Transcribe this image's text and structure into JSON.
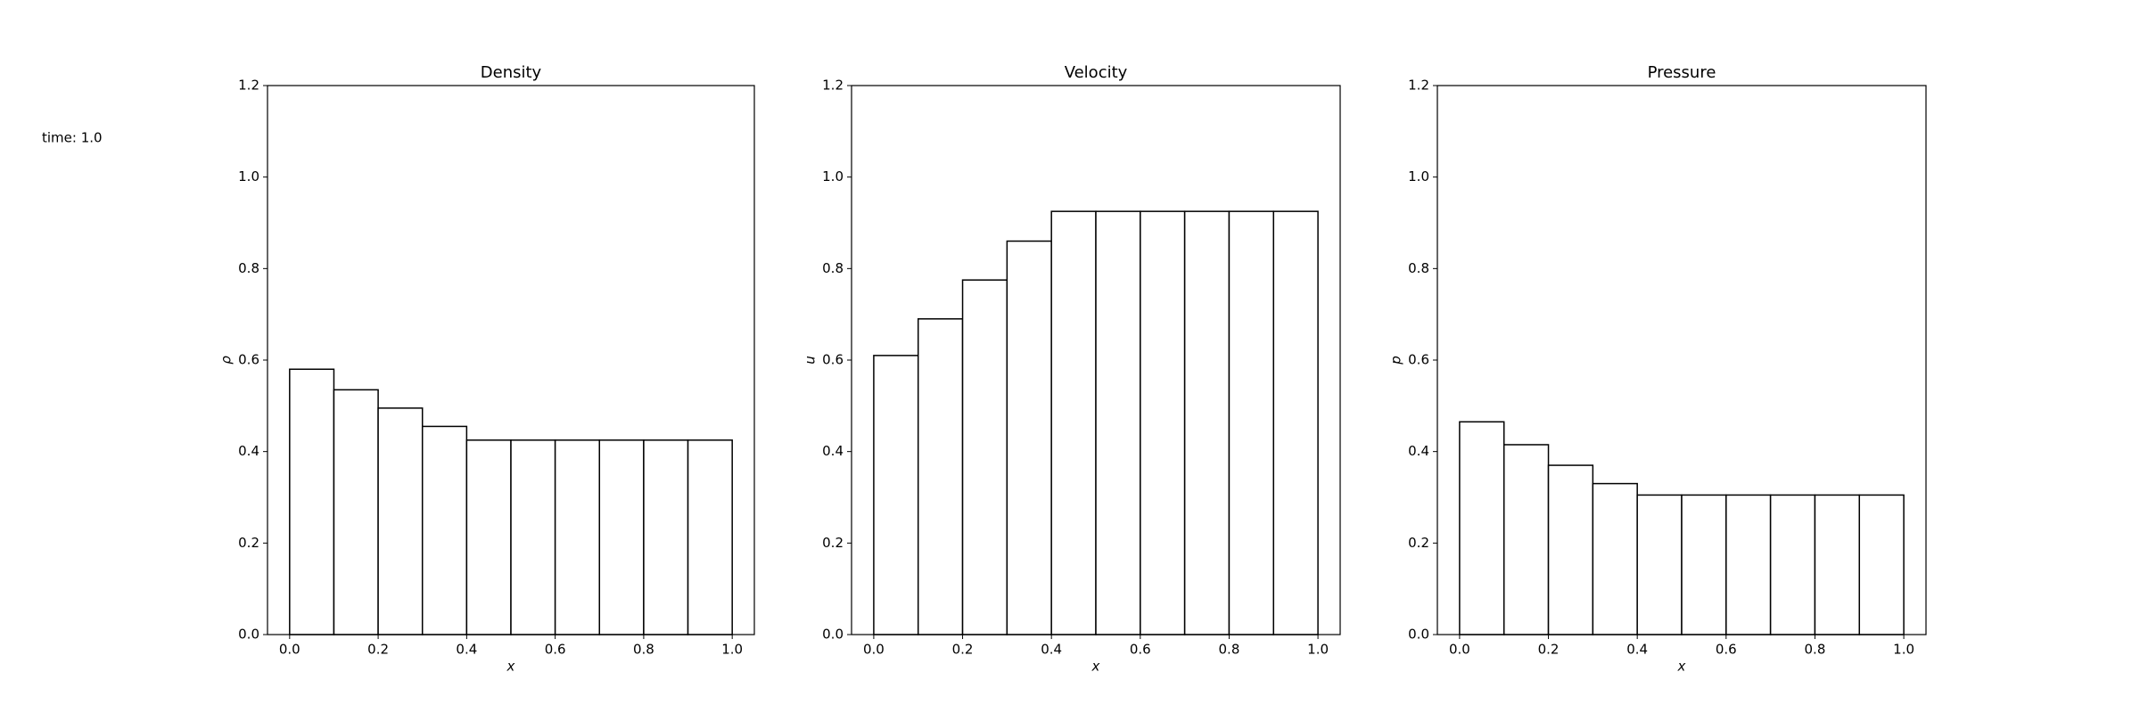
{
  "time_label": "time: 1.0",
  "chart_data": [
    {
      "type": "histogram",
      "title": "Density",
      "xlabel": "x",
      "ylabel": "ρ",
      "bins": [
        0,
        0.1,
        0.2,
        0.3,
        0.4,
        0.5,
        0.6,
        0.7,
        0.8,
        0.9,
        1.0
      ],
      "values": [
        0.58,
        0.535,
        0.495,
        0.455,
        0.425,
        0.425,
        0.425,
        0.425,
        0.425,
        0.425
      ],
      "color": "#ffffff",
      "edgecolor": "#000000",
      "xlim": [
        -0.05,
        1.05
      ],
      "ylim": [
        0,
        1.2
      ],
      "xticks": [
        {
          "value": 0,
          "label": "0.0"
        },
        0.2,
        0.4,
        0.6,
        0.8,
        {
          "value": 1,
          "label": "1.0"
        }
      ],
      "yticks": [
        {
          "value": 0,
          "label": "0.0"
        },
        0.2,
        0.4,
        0.6,
        0.8,
        {
          "value": 1,
          "label": "1.0"
        },
        1.2
      ]
    },
    {
      "type": "histogram",
      "title": "Velocity",
      "xlabel": "x",
      "ylabel": "u",
      "bins": [
        0,
        0.1,
        0.2,
        0.3,
        0.4,
        0.5,
        0.6,
        0.7,
        0.8,
        0.9,
        1.0
      ],
      "values": [
        0.61,
        0.69,
        0.775,
        0.86,
        0.925,
        0.925,
        0.925,
        0.925,
        0.925,
        0.925
      ],
      "color": "#ffffff",
      "edgecolor": "#000000",
      "xlim": [
        -0.05,
        1.05
      ],
      "ylim": [
        0,
        1.2
      ],
      "xticks": [
        {
          "value": 0,
          "label": "0.0"
        },
        0.2,
        0.4,
        0.6,
        0.8,
        {
          "value": 1,
          "label": "1.0"
        }
      ],
      "yticks": [
        {
          "value": 0,
          "label": "0.0"
        },
        0.2,
        0.4,
        0.6,
        0.8,
        {
          "value": 1,
          "label": "1.0"
        },
        1.2
      ]
    },
    {
      "type": "histogram",
      "title": "Pressure",
      "xlabel": "x",
      "ylabel": "p",
      "bins": [
        0,
        0.1,
        0.2,
        0.3,
        0.4,
        0.5,
        0.6,
        0.7,
        0.8,
        0.9,
        1.0
      ],
      "values": [
        0.465,
        0.415,
        0.37,
        0.33,
        0.305,
        0.305,
        0.305,
        0.305,
        0.305,
        0.305
      ],
      "color": "#ffffff",
      "edgecolor": "#000000",
      "xlim": [
        -0.05,
        1.05
      ],
      "ylim": [
        0,
        1.2
      ],
      "xticks": [
        {
          "value": 0,
          "label": "0.0"
        },
        0.2,
        0.4,
        0.6,
        0.8,
        {
          "value": 1,
          "label": "1.0"
        }
      ],
      "yticks": [
        {
          "value": 0,
          "label": "0.0"
        },
        0.2,
        0.4,
        0.6,
        0.8,
        {
          "value": 1,
          "label": "1.0"
        },
        1.2
      ]
    }
  ]
}
